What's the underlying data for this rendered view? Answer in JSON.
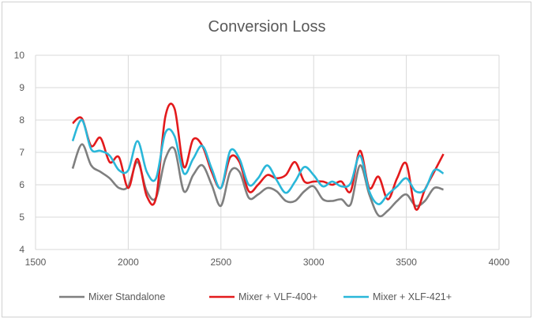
{
  "chart_data": {
    "type": "line",
    "title": "Conversion Loss",
    "xlabel": "",
    "ylabel": "",
    "xlim": [
      1500,
      4000
    ],
    "ylim": [
      4,
      10
    ],
    "xticks": [
      1500,
      2000,
      2500,
      3000,
      3500,
      4000
    ],
    "yticks": [
      4,
      5,
      6,
      7,
      8,
      9,
      10
    ],
    "grid": true,
    "legend": "bottom",
    "x": [
      1700,
      1750,
      1800,
      1850,
      1900,
      1950,
      2000,
      2050,
      2100,
      2150,
      2200,
      2250,
      2300,
      2350,
      2400,
      2450,
      2500,
      2550,
      2600,
      2650,
      2700,
      2750,
      2800,
      2850,
      2900,
      2950,
      3000,
      3050,
      3100,
      3150,
      3200,
      3250,
      3300,
      3350,
      3400,
      3450,
      3500,
      3550,
      3600,
      3650,
      3700
    ],
    "series": [
      {
        "name": "Mixer Standalone",
        "color": "#7f7f7f",
        "values": [
          6.5,
          7.25,
          6.6,
          6.4,
          6.2,
          5.9,
          5.95,
          6.7,
          5.8,
          5.6,
          6.8,
          7.1,
          5.8,
          6.3,
          6.6,
          6.0,
          5.35,
          6.4,
          6.4,
          5.6,
          5.7,
          5.9,
          5.8,
          5.5,
          5.5,
          5.8,
          5.95,
          5.55,
          5.5,
          5.55,
          5.4,
          6.6,
          5.7,
          5.05,
          5.2,
          5.5,
          5.7,
          5.35,
          5.5,
          5.9,
          5.85
        ]
      },
      {
        "name": "Mixer + VLF-400+",
        "color": "#e31a1c",
        "values": [
          7.9,
          8.05,
          7.2,
          7.45,
          6.7,
          6.85,
          5.9,
          6.8,
          5.65,
          5.6,
          8.1,
          8.35,
          6.55,
          7.4,
          7.2,
          6.4,
          5.9,
          6.85,
          6.7,
          5.8,
          6.0,
          6.3,
          6.2,
          6.3,
          6.7,
          6.1,
          6.1,
          6.1,
          6.0,
          6.1,
          5.8,
          7.05,
          5.9,
          6.25,
          5.55,
          6.2,
          6.65,
          5.25,
          5.85,
          6.4,
          6.95
        ]
      },
      {
        "name": "Mixer + XLF-421+",
        "color": "#2ab7d9",
        "values": [
          7.35,
          8.0,
          7.1,
          7.05,
          6.9,
          6.45,
          6.45,
          7.35,
          6.4,
          6.2,
          7.6,
          7.5,
          6.35,
          6.8,
          7.2,
          6.5,
          5.9,
          7.05,
          6.8,
          6.0,
          6.2,
          6.6,
          6.15,
          5.75,
          6.1,
          6.55,
          6.3,
          5.95,
          6.1,
          5.95,
          6.05,
          6.9,
          5.8,
          5.4,
          5.7,
          5.95,
          6.2,
          5.8,
          5.85,
          6.45,
          6.35
        ]
      }
    ]
  }
}
